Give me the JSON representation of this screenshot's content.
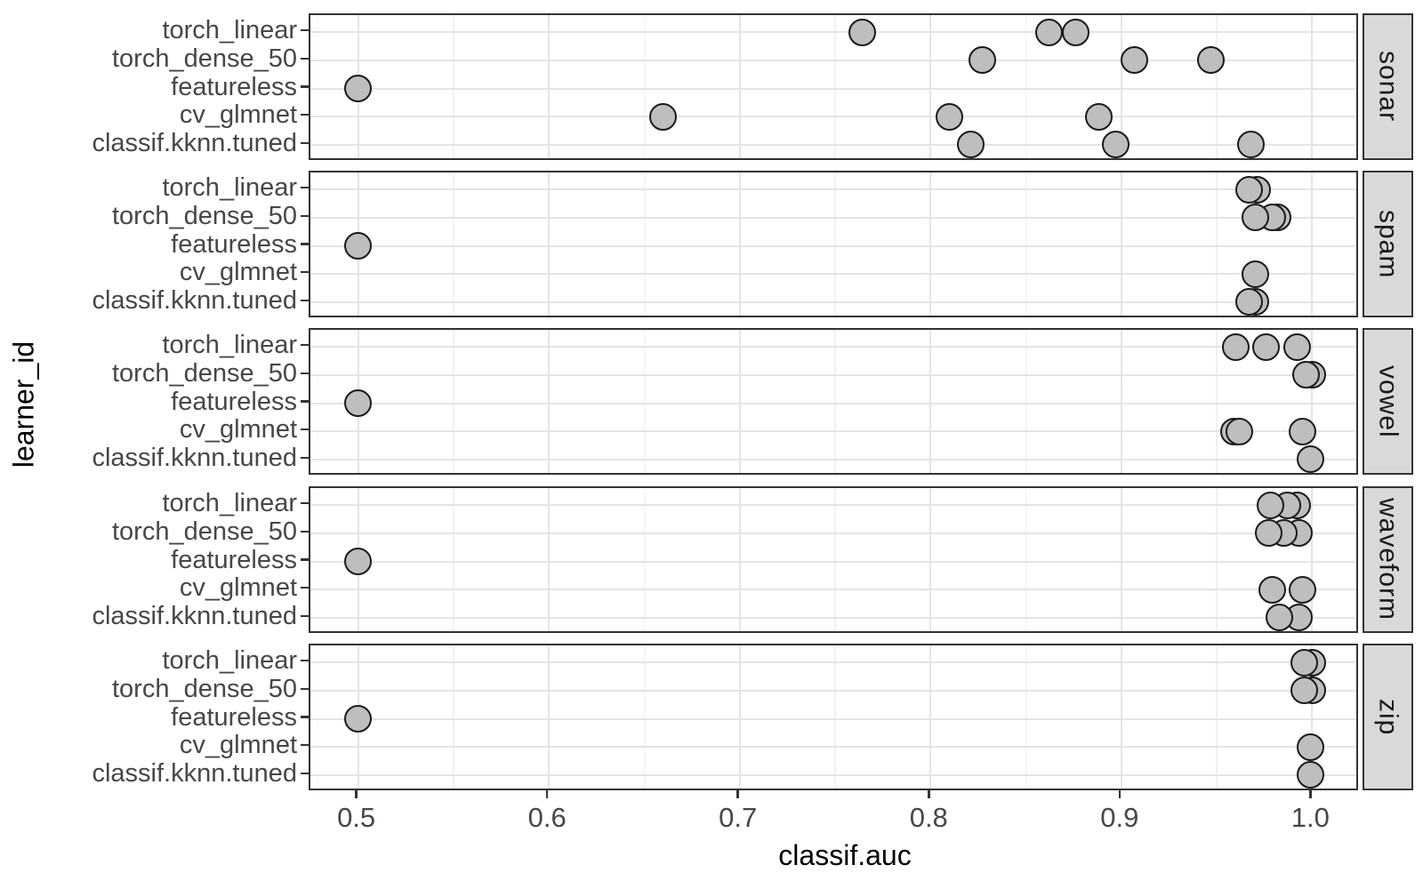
{
  "chart_data": {
    "type": "scatter",
    "xlabel": "classif.auc",
    "ylabel": "learner_id",
    "facet_position": "right-strip",
    "grid": "on",
    "xlim": [
      0.475,
      1.025
    ],
    "x_ticks": [
      0.5,
      0.6,
      0.7,
      0.8,
      0.9,
      1.0
    ],
    "x_tick_labels": [
      "0.5",
      "0.6",
      "0.7",
      "0.8",
      "0.9",
      "1.0"
    ],
    "x_minor_ticks": [
      0.55,
      0.65,
      0.75,
      0.85,
      0.95
    ],
    "learners": [
      "torch_linear",
      "torch_dense_50",
      "featureless",
      "cv_glmnet",
      "classif.kknn.tuned"
    ],
    "facets": [
      {
        "task": "sonar",
        "series": {
          "torch_linear": [
            0.764,
            0.862,
            0.876
          ],
          "torch_dense_50": [
            0.827,
            0.907,
            0.947
          ],
          "featureless": [
            0.5
          ],
          "cv_glmnet": [
            0.66,
            0.81,
            0.888
          ],
          "classif.kknn.tuned": [
            0.821,
            0.897,
            0.968
          ]
        }
      },
      {
        "task": "spam",
        "series": {
          "torch_linear": [
            0.971,
            0.967
          ],
          "torch_dense_50": [
            0.982,
            0.979,
            0.97
          ],
          "featureless": [
            0.5
          ],
          "cv_glmnet": [
            0.97
          ],
          "classif.kknn.tuned": [
            0.97,
            0.967
          ]
        }
      },
      {
        "task": "vowel",
        "series": {
          "torch_linear": [
            0.96,
            0.976,
            0.992
          ],
          "torch_dense_50": [
            1.0,
            0.997
          ],
          "featureless": [
            0.5
          ],
          "cv_glmnet": [
            0.959,
            0.962,
            0.995
          ],
          "classif.kknn.tuned": [
            0.999
          ]
        }
      },
      {
        "task": "waveform",
        "series": {
          "torch_linear": [
            0.992,
            0.987,
            0.978
          ],
          "torch_dense_50": [
            0.993,
            0.985,
            0.977
          ],
          "featureless": [
            0.5
          ],
          "cv_glmnet": [
            0.995,
            0.979
          ],
          "classif.kknn.tuned": [
            0.993,
            0.983
          ]
        }
      },
      {
        "task": "zip",
        "series": {
          "torch_linear": [
            1.0,
            0.996
          ],
          "torch_dense_50": [
            1.0,
            0.996
          ],
          "featureless": [
            0.5
          ],
          "cv_glmnet": [
            0.999
          ],
          "classif.kknn.tuned": [
            0.999
          ]
        }
      }
    ],
    "style": {
      "point_fill": "#bebebe",
      "point_stroke": "#1a1a1a",
      "strip_fill": "#d9d9d9",
      "panel_border": "#333333",
      "grid_major": "#e4e4e4",
      "grid_minor": "#f1f1f1",
      "axis_text": "#474747",
      "axis_title": "#000000"
    }
  }
}
